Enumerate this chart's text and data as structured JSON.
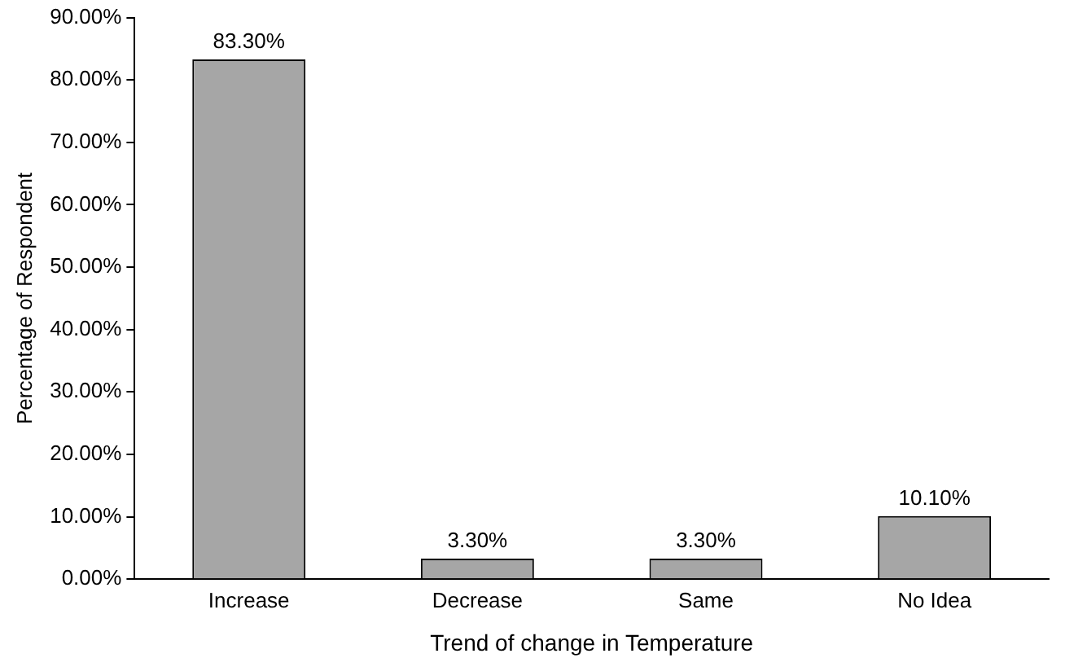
{
  "chart_data": {
    "type": "bar",
    "xlabel": "Trend of change in Temperature",
    "ylabel": "Percentage of Respondent",
    "categories": [
      "Increase",
      "Decrease",
      "Same",
      "No Idea"
    ],
    "values": [
      83.3,
      3.3,
      3.3,
      10.1
    ],
    "value_labels": [
      "83.30%",
      "3.30%",
      "3.30%",
      "10.10%"
    ],
    "color": "#a6a6a6",
    "ylim": [
      0,
      90
    ],
    "yticks": [
      {
        "value": 0,
        "label": "0.00%"
      },
      {
        "value": 10,
        "label": "10.00%"
      },
      {
        "value": 20,
        "label": "20.00%"
      },
      {
        "value": 30,
        "label": "30.00%"
      },
      {
        "value": 40,
        "label": "40.00%"
      },
      {
        "value": 50,
        "label": "50.00%"
      },
      {
        "value": 60,
        "label": "60.00%"
      },
      {
        "value": 70,
        "label": "70.00%"
      },
      {
        "value": 80,
        "label": "80.00%"
      },
      {
        "value": 90,
        "label": "90.00%"
      }
    ],
    "grid": false
  }
}
